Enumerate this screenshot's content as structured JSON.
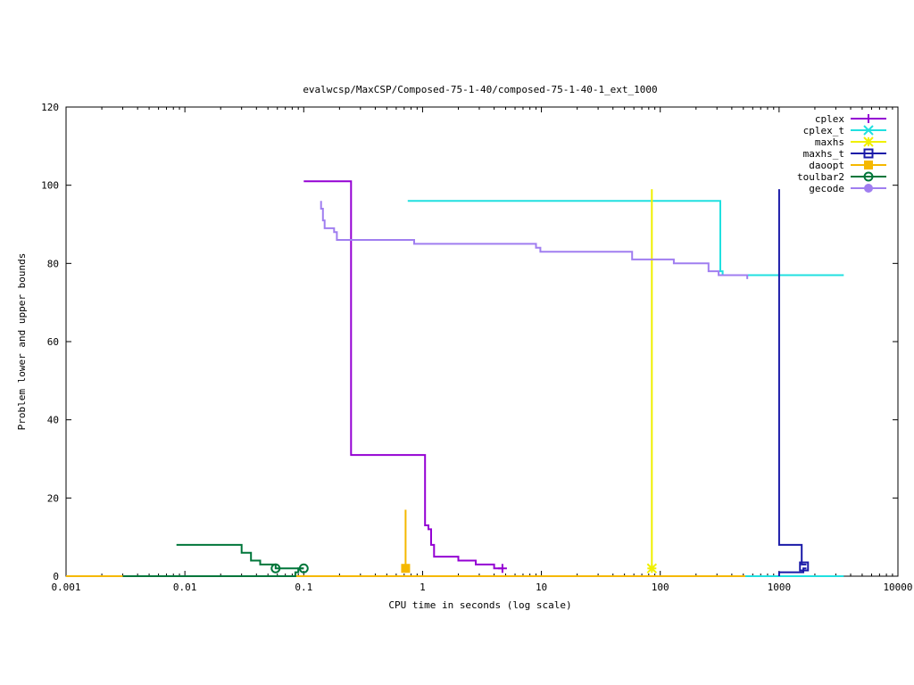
{
  "chart_data": {
    "type": "line",
    "title": "evalwcsp/MaxCSP/Composed-75-1-40/composed-75-1-40-1_ext_1000",
    "xlabel": "CPU time in seconds (log scale)",
    "ylabel": "Problem lower and upper bounds",
    "xscale": "log",
    "xlim": [
      0.001,
      10000
    ],
    "ylim": [
      0,
      120
    ],
    "xticks": [
      0.001,
      0.01,
      0.1,
      1,
      10,
      100,
      1000,
      10000
    ],
    "xtick_labels": [
      "0.001",
      "0.01",
      "0.1",
      "1",
      "10",
      "100",
      "1000",
      "10000"
    ],
    "yticks": [
      0,
      20,
      40,
      60,
      80,
      100,
      120
    ],
    "ytick_labels": [
      "0",
      "20",
      "40",
      "60",
      "80",
      "100",
      "120"
    ],
    "grid": false,
    "legend_position": "top-right",
    "series": [
      {
        "name": "cplex",
        "color": "#9400d3",
        "marker": "plus",
        "points": [
          [
            0.1,
            101
          ],
          [
            0.25,
            101
          ],
          [
            0.25,
            31
          ],
          [
            1.05,
            31
          ],
          [
            1.05,
            13
          ],
          [
            1.12,
            13
          ],
          [
            1.12,
            12
          ],
          [
            1.18,
            12
          ],
          [
            1.18,
            8
          ],
          [
            1.25,
            8
          ],
          [
            1.25,
            5
          ],
          [
            2.0,
            5
          ],
          [
            2.0,
            4
          ],
          [
            2.8,
            4
          ],
          [
            2.8,
            3
          ],
          [
            4.0,
            3
          ],
          [
            4.0,
            2
          ],
          [
            4.7,
            2
          ]
        ],
        "marker_points": [
          [
            4.7,
            2
          ]
        ]
      },
      {
        "name": "cplex_t",
        "color": "#20e0e0",
        "marker": "x",
        "points": [
          [
            0.75,
            96
          ],
          [
            320,
            96
          ],
          [
            320,
            78
          ],
          [
            335,
            78
          ],
          [
            335,
            77
          ],
          [
            3500,
            77
          ]
        ],
        "lower_points": [
          [
            520,
            0
          ],
          [
            3500,
            0
          ]
        ],
        "marker_points": []
      },
      {
        "name": "maxhs",
        "color": "#f0f000",
        "marker": "star",
        "points": [
          [
            85,
            99
          ],
          [
            85,
            2
          ]
        ],
        "marker_points": [
          [
            85,
            2
          ]
        ]
      },
      {
        "name": "maxhs_t",
        "color": "#1a1aa8",
        "marker": "square",
        "points": [
          [
            1000,
            99
          ],
          [
            1000,
            8
          ],
          [
            1550,
            8
          ],
          [
            1550,
            3
          ],
          [
            1700,
            3
          ]
        ],
        "lower_points": [
          [
            1000,
            0
          ],
          [
            1000,
            1
          ],
          [
            1600,
            1
          ],
          [
            1600,
            2
          ],
          [
            1700,
            2
          ]
        ],
        "marker_points": [
          [
            1620,
            2.5
          ]
        ]
      },
      {
        "name": "daoopt",
        "color": "#f5b800",
        "marker": "filled-square",
        "points": [
          [
            0.72,
            17
          ],
          [
            0.72,
            2
          ]
        ],
        "lower_points": [
          [
            0.001,
            0
          ],
          [
            520,
            0
          ]
        ],
        "marker_points": [
          [
            0.72,
            2
          ]
        ]
      },
      {
        "name": "toulbar2",
        "color": "#00763a",
        "marker": "circle",
        "points": [
          [
            0.0085,
            8
          ],
          [
            0.03,
            8
          ],
          [
            0.03,
            6
          ],
          [
            0.036,
            6
          ],
          [
            0.036,
            4
          ],
          [
            0.043,
            4
          ],
          [
            0.043,
            3
          ],
          [
            0.058,
            3
          ],
          [
            0.058,
            2
          ],
          [
            0.1,
            2
          ]
        ],
        "lower_points": [
          [
            0.003,
            0
          ],
          [
            0.085,
            0
          ],
          [
            0.085,
            1
          ],
          [
            0.09,
            1
          ],
          [
            0.09,
            2
          ],
          [
            0.1,
            2
          ]
        ],
        "marker_points": [
          [
            0.058,
            2
          ],
          [
            0.1,
            2
          ]
        ]
      },
      {
        "name": "gecode",
        "color": "#a07ef0",
        "marker": "filled-circle",
        "points": [
          [
            0.14,
            96
          ],
          [
            0.14,
            94
          ],
          [
            0.145,
            94
          ],
          [
            0.145,
            91
          ],
          [
            0.15,
            91
          ],
          [
            0.15,
            89
          ],
          [
            0.18,
            89
          ],
          [
            0.18,
            88
          ],
          [
            0.19,
            88
          ],
          [
            0.19,
            86
          ],
          [
            0.85,
            86
          ],
          [
            0.85,
            85
          ],
          [
            9.0,
            85
          ],
          [
            9.0,
            84
          ],
          [
            9.8,
            84
          ],
          [
            9.8,
            83
          ],
          [
            58,
            83
          ],
          [
            58,
            81
          ],
          [
            130,
            81
          ],
          [
            130,
            80
          ],
          [
            255,
            80
          ],
          [
            255,
            78
          ],
          [
            310,
            78
          ],
          [
            310,
            77
          ],
          [
            540,
            77
          ],
          [
            540,
            76
          ]
        ],
        "marker_points": []
      }
    ]
  }
}
